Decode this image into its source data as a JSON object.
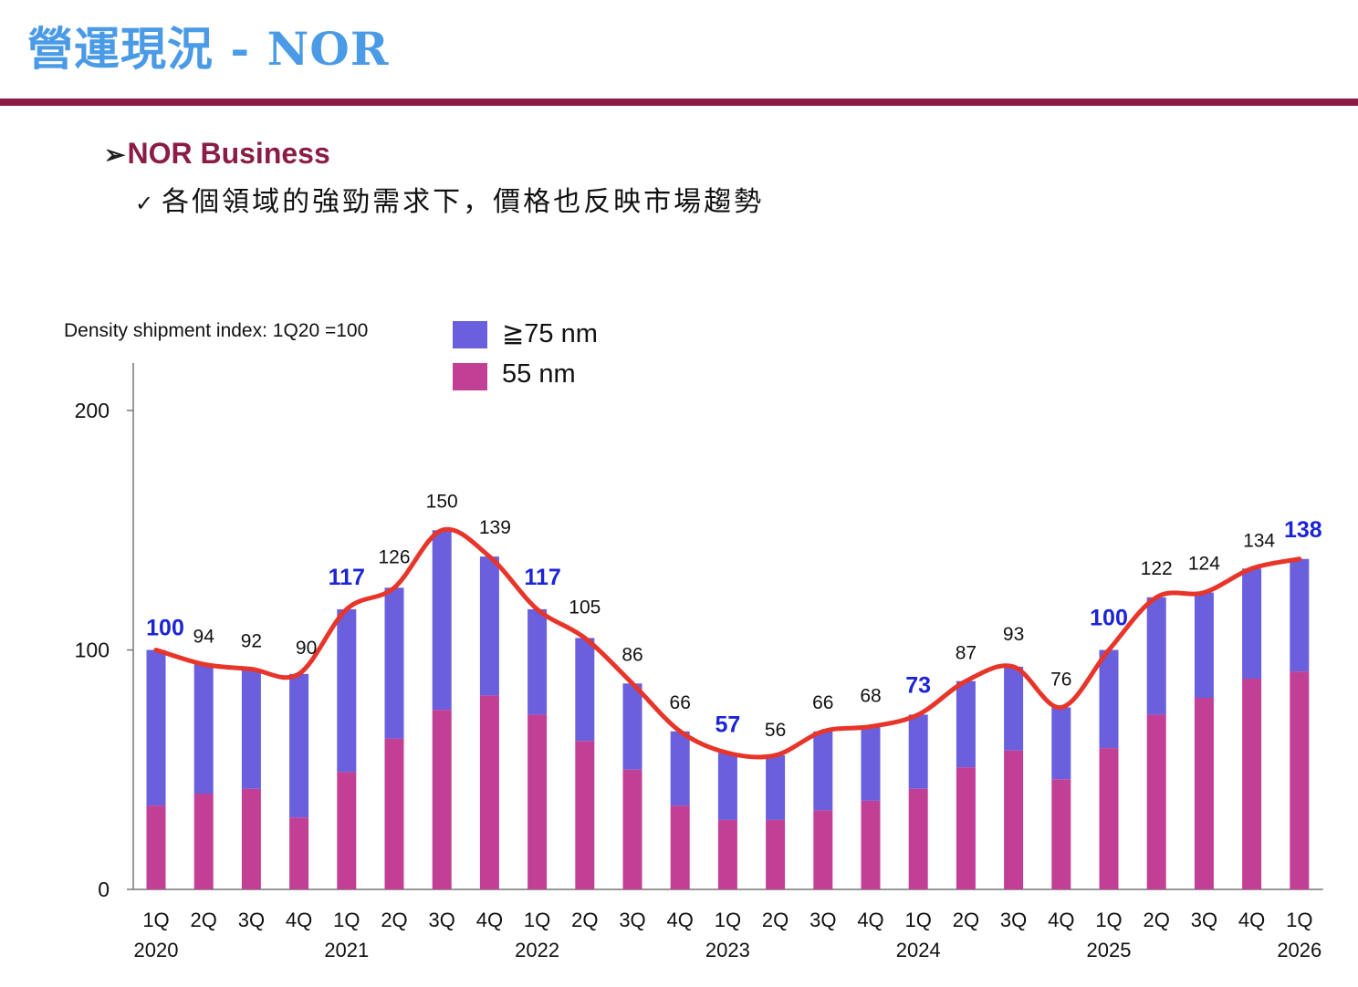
{
  "slide": {
    "title": "營運現況 - NOR",
    "bullet_arrow": "➢",
    "bullet_heading": "NOR Business",
    "check_mark": "✓",
    "bullet_sub": "各個領域的強勁需求下，價格也反映市場趨勢"
  },
  "colors": {
    "title": "#4a9ae6",
    "rule": "#8b1d45",
    "ge75": "#6a5fdc",
    "nm55": "#c23f96",
    "line": "#e8352a",
    "highlight": "#1b24d6"
  },
  "chart_data": {
    "type": "bar",
    "note": "Density shipment index: 1Q20 =100",
    "legend": [
      {
        "name": "≧75 nm",
        "color": "#6a5fdc"
      },
      {
        "name": "55 nm",
        "color": "#c23f96"
      }
    ],
    "ylim": [
      0,
      220
    ],
    "yticks": [
      "0",
      "100",
      "200"
    ],
    "categories": [
      "1Q",
      "2Q",
      "3Q",
      "4Q",
      "1Q",
      "2Q",
      "3Q",
      "4Q",
      "1Q",
      "2Q",
      "3Q",
      "4Q",
      "1Q",
      "2Q",
      "3Q",
      "4Q",
      "1Q",
      "2Q",
      "3Q",
      "4Q",
      "1Q",
      "2Q",
      "3Q",
      "4Q",
      "1Q"
    ],
    "years": [
      "2020",
      "",
      "",
      "",
      "2021",
      "",
      "",
      "",
      "2022",
      "",
      "",
      "",
      "2023",
      "",
      "",
      "",
      "2024",
      "",
      "",
      "",
      "2025",
      "",
      "",
      "",
      "2026"
    ],
    "totals": [
      100,
      94,
      92,
      90,
      117,
      126,
      150,
      139,
      117,
      105,
      86,
      66,
      57,
      56,
      66,
      68,
      73,
      87,
      93,
      76,
      100,
      122,
      124,
      134,
      138
    ],
    "nm55": [
      35,
      40,
      42,
      30,
      49,
      63,
      75,
      81,
      73,
      62,
      50,
      35,
      29,
      29,
      33,
      37,
      42,
      51,
      58,
      46,
      59,
      73,
      80,
      88,
      91
    ],
    "total_labels": [
      "100",
      "94",
      "92",
      "90",
      "117",
      "126",
      "150",
      "139",
      "117",
      "105",
      "86",
      "66",
      "57",
      "56",
      "66",
      "68",
      "73",
      "87",
      "93",
      "76",
      "100",
      "122",
      "124",
      "134",
      "138"
    ],
    "highlight": [
      true,
      false,
      false,
      false,
      true,
      false,
      false,
      false,
      true,
      false,
      false,
      false,
      true,
      false,
      false,
      false,
      true,
      false,
      false,
      false,
      true,
      false,
      false,
      false,
      true
    ]
  }
}
